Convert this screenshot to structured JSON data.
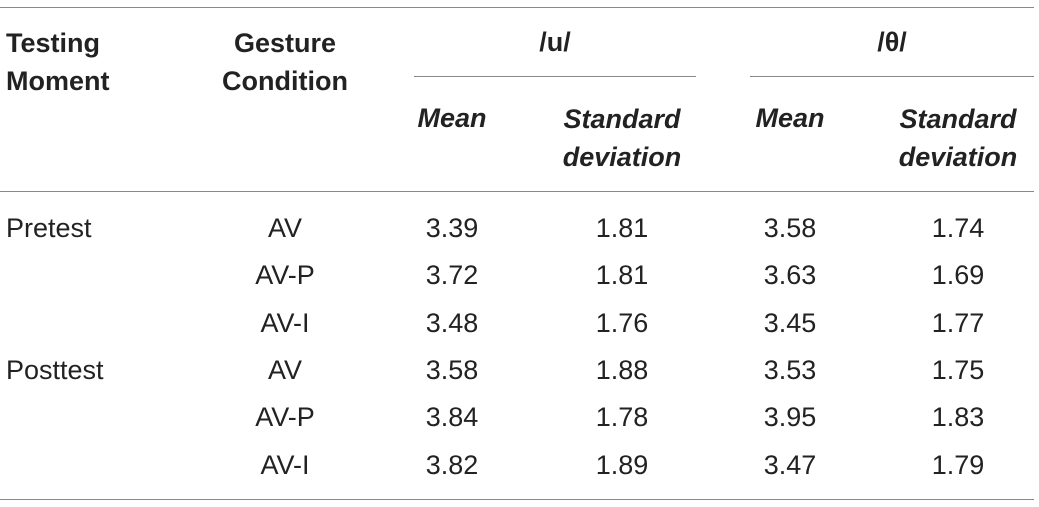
{
  "table": {
    "headers": {
      "testing_moment": [
        "Testing",
        "Moment"
      ],
      "gesture_condition": [
        "Gesture",
        "Condition"
      ],
      "group_u": "/u/",
      "group_theta": "/θ/",
      "mean": "Mean",
      "std": [
        "Standard",
        "deviation"
      ]
    },
    "rows": [
      {
        "moment": "Pretest",
        "condition": "AV",
        "u_mean": "3.39",
        "u_sd": "1.81",
        "t_mean": "3.58",
        "t_sd": "1.74"
      },
      {
        "moment": "",
        "condition": "AV-P",
        "u_mean": "3.72",
        "u_sd": "1.81",
        "t_mean": "3.63",
        "t_sd": "1.69"
      },
      {
        "moment": "",
        "condition": "AV-I",
        "u_mean": "3.48",
        "u_sd": "1.76",
        "t_mean": "3.45",
        "t_sd": "1.77"
      },
      {
        "moment": "Posttest",
        "condition": "AV",
        "u_mean": "3.58",
        "u_sd": "1.88",
        "t_mean": "3.53",
        "t_sd": "1.75"
      },
      {
        "moment": "",
        "condition": "AV-P",
        "u_mean": "3.84",
        "u_sd": "1.78",
        "t_mean": "3.95",
        "t_sd": "1.83"
      },
      {
        "moment": "",
        "condition": "AV-I",
        "u_mean": "3.82",
        "u_sd": "1.89",
        "t_mean": "3.47",
        "t_sd": "1.79"
      }
    ]
  }
}
